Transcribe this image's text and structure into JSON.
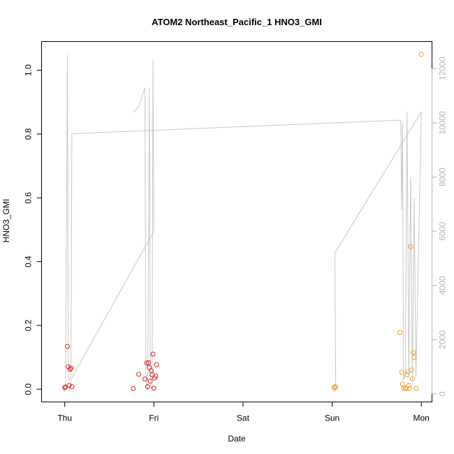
{
  "chart_data": {
    "type": "scatter",
    "title": "ATOM2 Northeast_Pacific_1 HNO3_GMI",
    "xlabel": "Date",
    "ylabel": "HNO3_GMI",
    "x_ticks": [
      {
        "day": 0,
        "label": "Thu"
      },
      {
        "day": 1,
        "label": "Fri"
      },
      {
        "day": 2,
        "label": "Sat"
      },
      {
        "day": 3,
        "label": "Sun"
      },
      {
        "day": 4,
        "label": "Mon"
      }
    ],
    "xlim": [
      -0.26,
      4.12
    ],
    "ylim": [
      -0.04,
      1.09
    ],
    "y_ticks": [
      0.0,
      0.2,
      0.4,
      0.6,
      0.8,
      1.0
    ],
    "y_tick_labels": [
      "0.0",
      "0.2",
      "0.4",
      "0.6",
      "0.8",
      "1.0"
    ],
    "y2_ticks": [
      0,
      2000,
      4000,
      6000,
      8000,
      10000,
      12000
    ],
    "y2_tick_labels": [
      "0",
      "2000",
      "4000",
      "6000",
      "8000",
      "10000",
      "12000"
    ],
    "y2lim": [
      -300,
      13000
    ],
    "grid": false,
    "series": [
      {
        "color": "#e02020",
        "marker": "open-circle",
        "points": [
          [
            0.0,
            0.005
          ],
          [
            0.01,
            0.007
          ],
          [
            0.03,
            0.134
          ],
          [
            0.04,
            0.07
          ],
          [
            0.05,
            0.012
          ],
          [
            0.06,
            0.062
          ],
          [
            0.07,
            0.066
          ],
          [
            0.08,
            0.008
          ],
          [
            0.77,
            0.002
          ],
          [
            0.83,
            0.047
          ],
          [
            0.9,
            0.032
          ],
          [
            0.92,
            0.082
          ],
          [
            0.93,
            0.008
          ],
          [
            0.94,
            0.083
          ],
          [
            0.95,
            0.068
          ],
          [
            0.96,
            0.025
          ],
          [
            0.97,
            0.058
          ],
          [
            0.98,
            0.045
          ],
          [
            0.99,
            0.11
          ],
          [
            1.0,
            0.003
          ],
          [
            1.01,
            0.035
          ],
          [
            1.02,
            0.042
          ],
          [
            1.03,
            0.077
          ]
        ]
      },
      {
        "color": "#f0a030",
        "marker": "open-circle",
        "points": [
          [
            3.02,
            0.004
          ],
          [
            3.03,
            0.008
          ],
          [
            3.04,
            0.006
          ],
          [
            3.76,
            0.178
          ],
          [
            3.78,
            0.053
          ],
          [
            3.79,
            0.016
          ],
          [
            3.8,
            0.003
          ],
          [
            3.82,
            0.004
          ],
          [
            3.83,
            0.002
          ],
          [
            3.84,
            0.045
          ],
          [
            3.85,
            0.055
          ],
          [
            3.86,
            0.012
          ],
          [
            3.87,
            0.002
          ],
          [
            3.88,
            0.447
          ],
          [
            3.89,
            0.06
          ],
          [
            3.9,
            0.033
          ],
          [
            3.91,
            0.115
          ],
          [
            3.92,
            0.1
          ],
          [
            3.94,
            0.002
          ],
          [
            4.0,
            1.05
          ]
        ]
      }
    ],
    "altitude_series": {
      "color": "#c8c8c8",
      "axis": "right",
      "segments": [
        [
          [
            0.0,
            50
          ],
          [
            0.01,
            500
          ],
          [
            0.03,
            12500
          ],
          [
            0.04,
            700
          ],
          [
            0.05,
            500
          ],
          [
            0.06,
            600
          ],
          [
            0.07,
            700
          ],
          [
            0.08,
            9600
          ],
          [
            3.77,
            10100
          ],
          [
            3.78,
            6800
          ],
          [
            3.79,
            10000
          ],
          [
            3.8,
            500
          ],
          [
            3.82,
            800
          ],
          [
            3.84,
            10400
          ],
          [
            3.86,
            600
          ],
          [
            3.88,
            8000
          ],
          [
            3.9,
            500
          ],
          [
            3.92,
            7200
          ],
          [
            3.94,
            600
          ],
          [
            4.0,
            10400
          ],
          [
            3.03,
            5200
          ],
          [
            3.04,
            150
          ],
          [
            3.02,
            50
          ]
        ],
        [
          [
            0.77,
            10400
          ],
          [
            0.83,
            10600
          ],
          [
            0.9,
            11300
          ],
          [
            0.91,
            700
          ],
          [
            0.92,
            200
          ],
          [
            0.93,
            100
          ],
          [
            0.95,
            11300
          ],
          [
            0.96,
            400
          ],
          [
            0.97,
            200
          ],
          [
            0.98,
            300
          ],
          [
            0.99,
            12300
          ],
          [
            1.0,
            6000
          ],
          [
            0.08,
            600
          ],
          [
            0.05,
            100
          ]
        ]
      ]
    }
  }
}
